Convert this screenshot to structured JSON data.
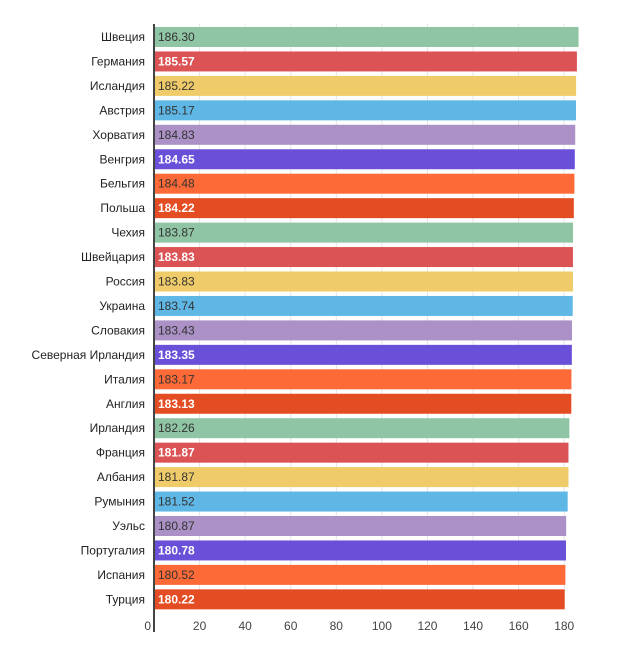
{
  "chart_data": {
    "type": "bar",
    "orientation": "horizontal",
    "title": "",
    "xlabel": "",
    "ylabel": "",
    "xlim": [
      0,
      190
    ],
    "grid": true,
    "legend": "none",
    "categories": [
      "Швеция",
      "Германия",
      "Исландия",
      "Австрия",
      "Хорватия",
      "Венгрия",
      "Бельгия",
      "Польша",
      "Чехия",
      "Швейцария",
      "Россия",
      "Украина",
      "Словакия",
      "Северная Ирландия",
      "Италия",
      "Англия",
      "Ирландия",
      "Франция",
      "Албания",
      "Румыния",
      "Уэльс",
      "Португалия",
      "Испания",
      "Турция"
    ],
    "values": [
      186.3,
      185.57,
      185.22,
      185.17,
      184.83,
      184.65,
      184.48,
      184.22,
      183.87,
      183.83,
      183.83,
      183.74,
      183.43,
      183.35,
      183.17,
      183.13,
      182.26,
      181.87,
      181.87,
      181.52,
      180.87,
      180.78,
      180.52,
      180.22
    ],
    "value_labels": [
      "186.30",
      "185.57",
      "185.22",
      "185.17",
      "184.83",
      "184.65",
      "184.48",
      "184.22",
      "183.87",
      "183.83",
      "183.83",
      "183.74",
      "183.43",
      "183.35",
      "183.17",
      "183.13",
      "182.26",
      "181.87",
      "181.87",
      "181.52",
      "180.87",
      "180.78",
      "180.52",
      "180.22"
    ],
    "x_ticks": [
      0,
      20,
      40,
      60,
      80,
      100,
      120,
      140,
      160,
      180
    ],
    "x_tick_labels": [
      "0",
      "20",
      "40",
      "60",
      "80",
      "100",
      "120",
      "140",
      "160",
      "180"
    ],
    "palette": [
      "#8fc4a4",
      "#dc5356",
      "#f0cb69",
      "#5fb7e5",
      "#ab91c5",
      "#6a50d9",
      "#fd6a37",
      "#e44d24"
    ],
    "label_colors": [
      "#333333",
      "#ffffff",
      "#333333",
      "#333333",
      "#333333",
      "#ffffff",
      "#333333",
      "#ffffff"
    ]
  }
}
